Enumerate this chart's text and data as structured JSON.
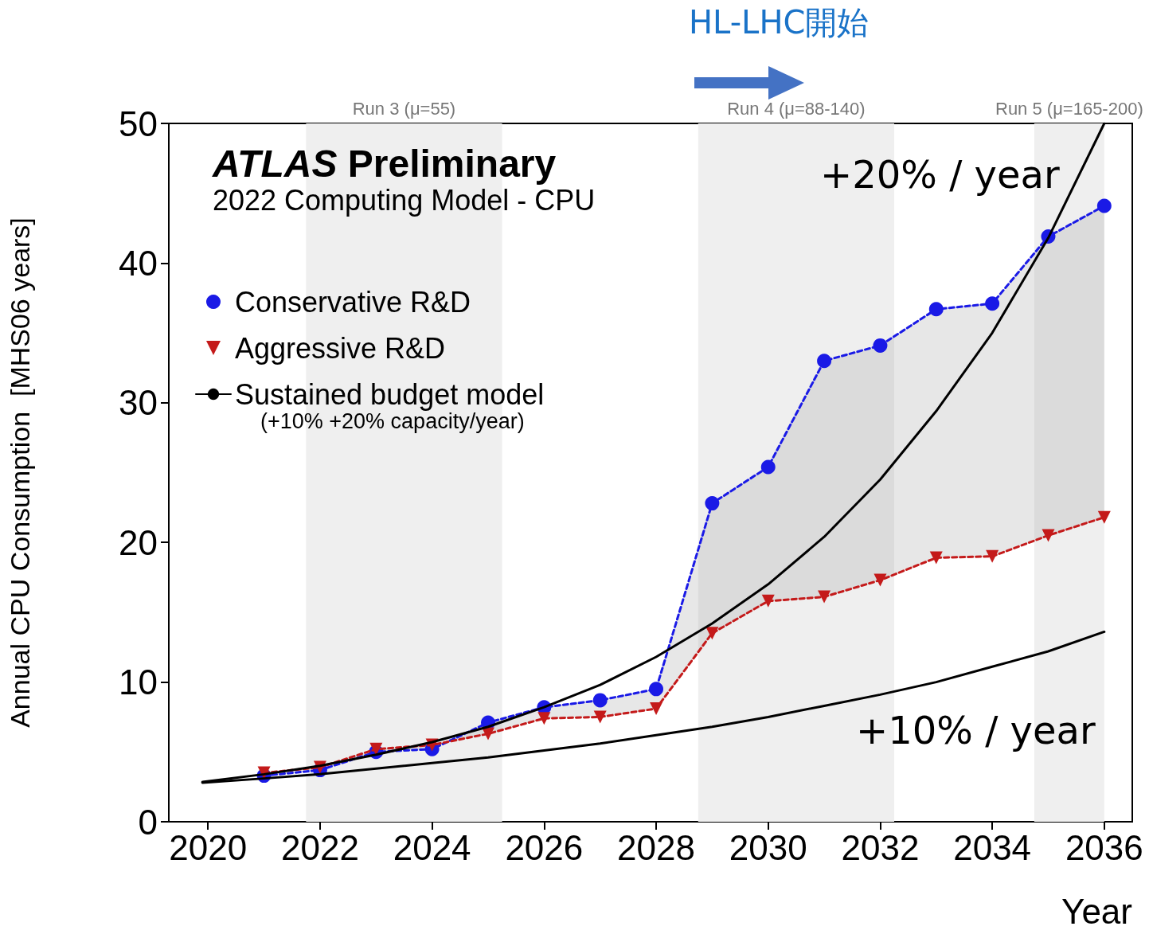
{
  "chart_data": {
    "type": "line",
    "title": "ATLAS Preliminary",
    "subtitle": "2022 Computing Model - CPU",
    "xlabel": "Year",
    "ylabel": "Annual CPU Consumption  [MHS06 years]",
    "x": [
      2021,
      2022,
      2023,
      2024,
      2025,
      2026,
      2027,
      2028,
      2029,
      2030,
      2031,
      2032,
      2033,
      2034,
      2035,
      2036
    ],
    "series": [
      {
        "name": "Conservative R&D",
        "color": "#1a1ae6",
        "marker": "circle",
        "line_style": "dashed",
        "values": [
          3.3,
          3.7,
          5.0,
          5.2,
          7.1,
          8.2,
          8.7,
          9.5,
          22.8,
          25.4,
          33.0,
          34.1,
          36.7,
          37.1,
          41.9,
          44.1
        ],
        "lower": [
          3.5,
          3.9,
          5.2,
          5.5,
          6.3,
          7.4,
          7.5,
          8.1,
          13.5,
          15.8,
          16.1,
          17.3,
          18.9,
          19.0,
          20.5,
          21.8
        ],
        "upper": [
          3.3,
          3.7,
          5.0,
          5.2,
          7.1,
          8.2,
          8.7,
          9.5,
          22.8,
          25.4,
          33.0,
          34.1,
          36.7,
          37.1,
          41.9,
          44.1
        ]
      },
      {
        "name": "Aggressive R&D",
        "color": "#c41a1a",
        "marker": "triangle",
        "line_style": "dashed",
        "values": [
          3.5,
          3.9,
          5.2,
          5.5,
          6.3,
          7.4,
          7.5,
          8.1,
          13.5,
          15.8,
          16.1,
          17.3,
          18.9,
          19.0,
          20.5,
          21.8
        ]
      },
      {
        "name": "Sustained budget model",
        "color": "#000000",
        "marker": "none",
        "line_style": "solid",
        "x": [
          2019.9,
          2021,
          2022,
          2023,
          2024,
          2025,
          2026,
          2027,
          2028,
          2029,
          2030,
          2031,
          2032,
          2033,
          2034,
          2035,
          2036
        ],
        "values": [
          2.85,
          3.4,
          4.0,
          4.8,
          5.7,
          6.8,
          8.2,
          9.8,
          11.8,
          14.2,
          17.0,
          20.4,
          24.5,
          29.4,
          35.0,
          41.8,
          50.0
        ]
      },
      {
        "color": "#000000",
        "marker": "none",
        "line_style": "solid",
        "x": [
          2019.9,
          2021,
          2022,
          2023,
          2024,
          2025,
          2026,
          2027,
          2028,
          2029,
          2030,
          2031,
          2032,
          2033,
          2034,
          2035,
          2036
        ],
        "values": [
          2.8,
          3.1,
          3.4,
          3.8,
          4.2,
          4.6,
          5.1,
          5.6,
          6.2,
          6.8,
          7.5,
          8.3,
          9.1,
          10.0,
          11.1,
          12.2,
          13.6
        ]
      }
    ],
    "bands": [
      {
        "axis": "x",
        "from": 2021.75,
        "to": 2025.25,
        "label": "Run 3 (μ=55)",
        "color": "#efefef"
      },
      {
        "axis": "x",
        "from": 2028.75,
        "to": 2032.25,
        "label": "Run 4 (μ=88-140)",
        "color": "#efefef"
      },
      {
        "axis": "x",
        "from": 2034.75,
        "to": 2036.0,
        "label": "Run 5 (μ=165-200)",
        "color": "#efefef"
      }
    ],
    "annotations": [
      "+20% / year",
      "+10% / year",
      "(+10% +20% capacity/year)",
      "HL-LHC開始"
    ],
    "xlim": [
      2019.3,
      2036.5
    ],
    "xticks": [
      2020,
      2022,
      2024,
      2026,
      2028,
      2030,
      2032,
      2034,
      2036
    ],
    "ylim": [
      0,
      50
    ],
    "yticks": [
      0,
      10,
      20,
      30,
      40,
      50
    ],
    "grid": false,
    "legend": "top left"
  }
}
